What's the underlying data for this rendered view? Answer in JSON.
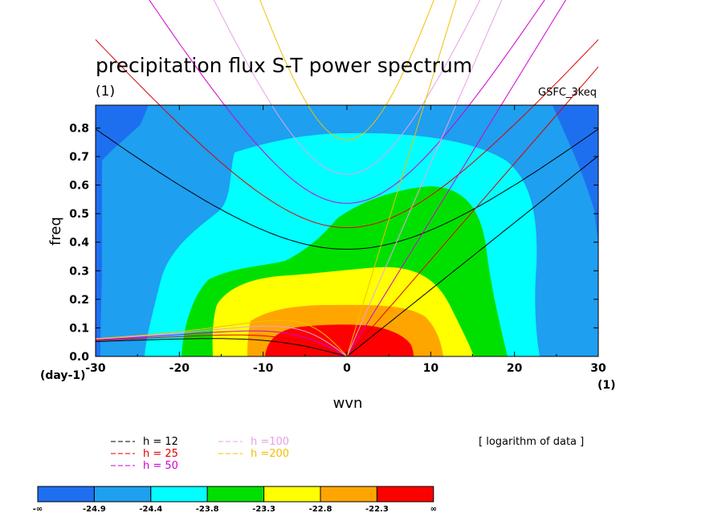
{
  "chart_data": {
    "type": "contour",
    "title": "precipitation flux S-T power spectrum",
    "unit_label": "(1)",
    "model_label": "GSFC_3keq",
    "xlabel": "wvn",
    "ylabel": "freq",
    "x_unit": "(1)",
    "y_unit": "(day-1)",
    "xlim": [
      -30,
      30
    ],
    "ylim": [
      0,
      0.88
    ],
    "x_ticks": [
      "-30",
      "-20",
      "-10",
      "0",
      "10",
      "20",
      "30"
    ],
    "y_ticks": [
      "0.0",
      "0.1",
      "0.2",
      "0.3",
      "0.4",
      "0.5",
      "0.6",
      "0.7",
      "0.8"
    ],
    "note": "[ logarithm of data ]",
    "dispersion_legend": [
      {
        "label": "h = 12",
        "h": 12,
        "color": "#000000"
      },
      {
        "label": "h = 25",
        "h": 25,
        "color": "#e00000"
      },
      {
        "label": "h = 50",
        "h": 50,
        "color": "#d000d0"
      },
      {
        "label": "h =100",
        "h": 100,
        "color": "#e8a0e8"
      },
      {
        "label": "h =200",
        "h": 200,
        "color": "#f0c000"
      }
    ],
    "colorbar": {
      "tick_labels": [
        "-∞",
        "-24.9",
        "-24.4",
        "-23.8",
        "-23.3",
        "-22.8",
        "-22.3",
        "∞"
      ],
      "colors": [
        "#1e6ff0",
        "#1e9ff0",
        "#00ffff",
        "#00e000",
        "#ffff00",
        "#ffa500",
        "#ff0000"
      ]
    },
    "contour_regions": [
      {
        "level": "< -24.9",
        "color": "#1e6ff0"
      },
      {
        "level": "-24.9 to -24.4",
        "color": "#1e9ff0"
      },
      {
        "level": "-24.4 to -23.8",
        "color": "#00ffff"
      },
      {
        "level": "-23.8 to -23.3",
        "color": "#00e000"
      },
      {
        "level": "-23.3 to -22.8",
        "color": "#ffff00"
      },
      {
        "level": "-22.8 to -22.3",
        "color": "#ffa500"
      },
      {
        "level": "> -22.3",
        "color": "#ff0000"
      }
    ]
  }
}
